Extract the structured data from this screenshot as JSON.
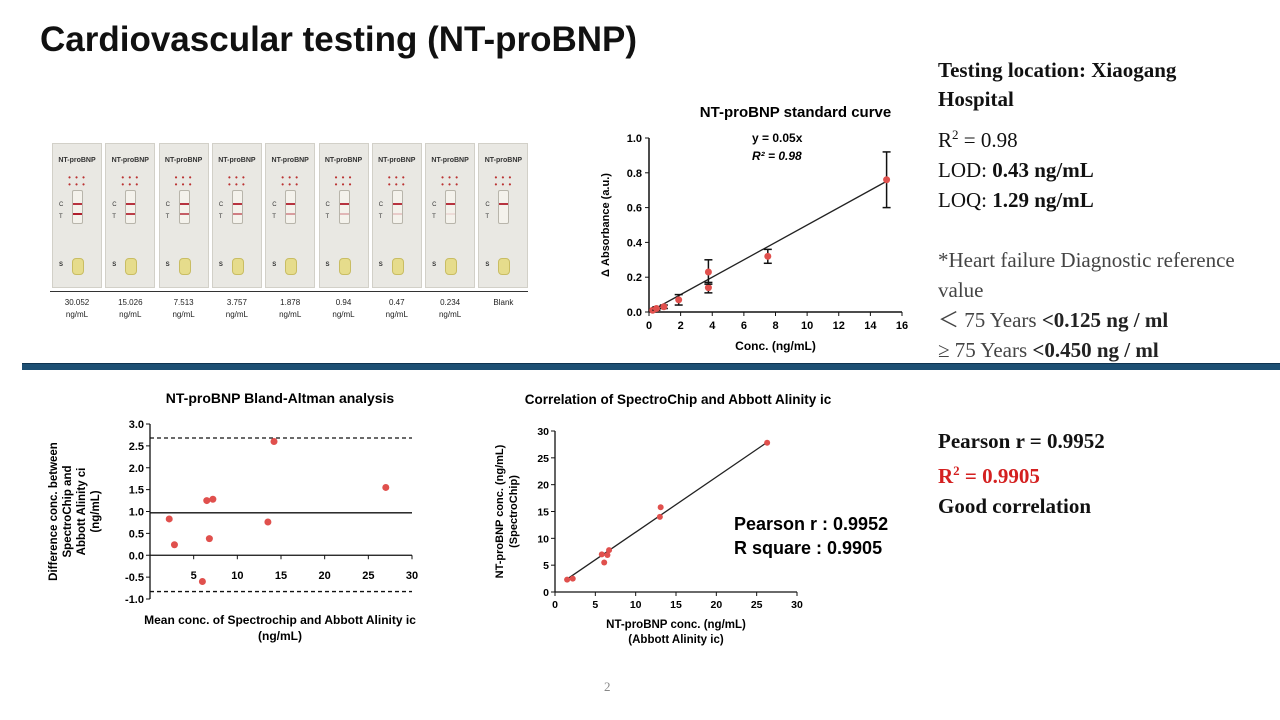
{
  "slide": {
    "title": "Cardiovascular testing (NT-proBNP)",
    "page_number": "2"
  },
  "info": {
    "location": "Testing location: Xiaogang Hospital",
    "r2_label": "R",
    "r2_sup": "2",
    "r2_value": " = 0.98",
    "lod_label": "LOD: ",
    "lod_value": "0.43 ng/mL",
    "loq_label": "LOQ: ",
    "loq_value": "1.29 ng/mL",
    "note_line1": "*Heart failure Diagnostic reference",
    "note_line2": "value",
    "lt_symbol": "＜",
    "lt_years": " 75 Years ",
    "lt_value": "<0.125 ng / ml",
    "ge_symbol": "≥",
    "ge_years": " 75 Years ",
    "ge_value": "<0.450 ng / ml"
  },
  "correlation_stats": {
    "pearson": "Pearson r = 0.9952",
    "r2_label": "R",
    "r2_sup": "2",
    "r2_value": " = 0.9905",
    "verdict": "Good correlation"
  },
  "strips": {
    "brand": "NT-proBNP",
    "c_label": "C",
    "t_label": "T",
    "s_label": "S",
    "items": [
      {
        "value": "30.052",
        "unit": "ng/mL",
        "intensity": 1.0
      },
      {
        "value": "15.026",
        "unit": "ng/mL",
        "intensity": 0.85
      },
      {
        "value": "7.513",
        "unit": "ng/mL",
        "intensity": 0.7
      },
      {
        "value": "3.757",
        "unit": "ng/mL",
        "intensity": 0.55
      },
      {
        "value": "1.878",
        "unit": "ng/mL",
        "intensity": 0.4
      },
      {
        "value": "0.94",
        "unit": "ng/mL",
        "intensity": 0.28
      },
      {
        "value": "0.47",
        "unit": "ng/mL",
        "intensity": 0.18
      },
      {
        "value": "0.234",
        "unit": "ng/mL",
        "intensity": 0.1
      },
      {
        "value": "Blank",
        "unit": "",
        "intensity": 0.0
      }
    ]
  },
  "chart_data": [
    {
      "type": "scatter",
      "title": "NT-proBNP standard curve",
      "xlabel": "Conc. (ng/mL)",
      "ylabel": "Δ Absorbance (a.u.)",
      "xlim": [
        0,
        16
      ],
      "ylim": [
        0,
        1.0
      ],
      "xticks": [
        "0",
        "2",
        "4",
        "6",
        "8",
        "10",
        "12",
        "14",
        "16"
      ],
      "yticks": [
        "0.0",
        "0.2",
        "0.4",
        "0.6",
        "0.8",
        "1.0"
      ],
      "equation": "y = 0.05x",
      "r2_text": "R² = 0.98",
      "fit_line": {
        "x": [
          0,
          15
        ],
        "y": [
          0,
          0.75
        ]
      },
      "points": [
        {
          "x": 0.234,
          "y": 0.01,
          "err": 0.005
        },
        {
          "x": 0.47,
          "y": 0.02,
          "err": 0.01
        },
        {
          "x": 0.94,
          "y": 0.03,
          "err": 0.01
        },
        {
          "x": 1.878,
          "y": 0.07,
          "err": 0.03
        },
        {
          "x": 3.757,
          "y": 0.14,
          "err": 0.03
        },
        {
          "x": 3.757,
          "y": 0.23,
          "err": 0.07
        },
        {
          "x": 7.513,
          "y": 0.32,
          "err": 0.04
        },
        {
          "x": 15.026,
          "y": 0.76,
          "err": 0.16
        }
      ]
    },
    {
      "type": "scatter",
      "title": "NT-proBNP Bland-Altman analysis",
      "xlabel": "Mean conc. of Spectrochip and Abbott Alinity ic (ng/mL)",
      "xlabel_line1": "Mean conc. of Spectrochip and Abbott Alinity ic",
      "xlabel_line2": "(ng/mL)",
      "ylabel": "Difference conc. between SpectroChip and Abbott Alinity ci (ng/mL)",
      "ylabel_line1": "Difference conc. between",
      "ylabel_line2": "SpectroChip and",
      "ylabel_line3": "Abbott Alinity ci",
      "ylabel_line4": "(ng/mL)",
      "xlim": [
        0,
        30
      ],
      "ylim": [
        -1.0,
        3.0
      ],
      "xticks": [
        "5",
        "10",
        "15",
        "20",
        "25",
        "30"
      ],
      "yticks": [
        "3.0",
        "2.5",
        "2.0",
        "1.5",
        "1.0",
        "0.5",
        "0.0",
        "-0.5",
        "-1.0"
      ],
      "mean_line": 0.97,
      "upper_loa": 2.68,
      "lower_loa": -0.83,
      "points": [
        {
          "x": 2.2,
          "y": 0.83
        },
        {
          "x": 2.8,
          "y": 0.24
        },
        {
          "x": 6.0,
          "y": -0.6
        },
        {
          "x": 6.5,
          "y": 1.25
        },
        {
          "x": 6.8,
          "y": 0.38
        },
        {
          "x": 7.2,
          "y": 1.28
        },
        {
          "x": 13.5,
          "y": 0.76
        },
        {
          "x": 14.2,
          "y": 2.6
        },
        {
          "x": 27.0,
          "y": 1.55
        }
      ]
    },
    {
      "type": "scatter",
      "title": "Correlation of SpectroChip and Abbott Alinity ic",
      "xlabel": "NT-proBNP conc. (ng/mL) (Abbott Alinity ic)",
      "xlabel_line1": "NT-proBNP conc. (ng/mL)",
      "xlabel_line2": "(Abbott Alinity ic)",
      "ylabel": "NT-proBNP conc. (ng/mL) (SpectroChip)",
      "ylabel_line1": "NT-proBNP conc. (ng/mL)",
      "ylabel_line2": "(SpectroChip)",
      "xlim": [
        0,
        30
      ],
      "ylim": [
        0,
        30
      ],
      "xticks": [
        "0",
        "5",
        "10",
        "15",
        "20",
        "25",
        "30"
      ],
      "yticks": [
        "0",
        "5",
        "10",
        "15",
        "20",
        "25",
        "30"
      ],
      "pearson_text": "Pearson r : 0.9952",
      "rsquare_text": "R square : 0.9905",
      "fit_line": {
        "x": [
          1.3,
          26.3
        ],
        "y": [
          2.2,
          27.9
        ]
      },
      "points": [
        {
          "x": 1.5,
          "y": 2.3
        },
        {
          "x": 2.2,
          "y": 2.5
        },
        {
          "x": 5.8,
          "y": 7.0
        },
        {
          "x": 6.1,
          "y": 5.5
        },
        {
          "x": 6.5,
          "y": 6.9
        },
        {
          "x": 6.7,
          "y": 7.8
        },
        {
          "x": 13.0,
          "y": 14.0
        },
        {
          "x": 13.1,
          "y": 15.8
        },
        {
          "x": 26.3,
          "y": 27.8
        }
      ]
    }
  ]
}
